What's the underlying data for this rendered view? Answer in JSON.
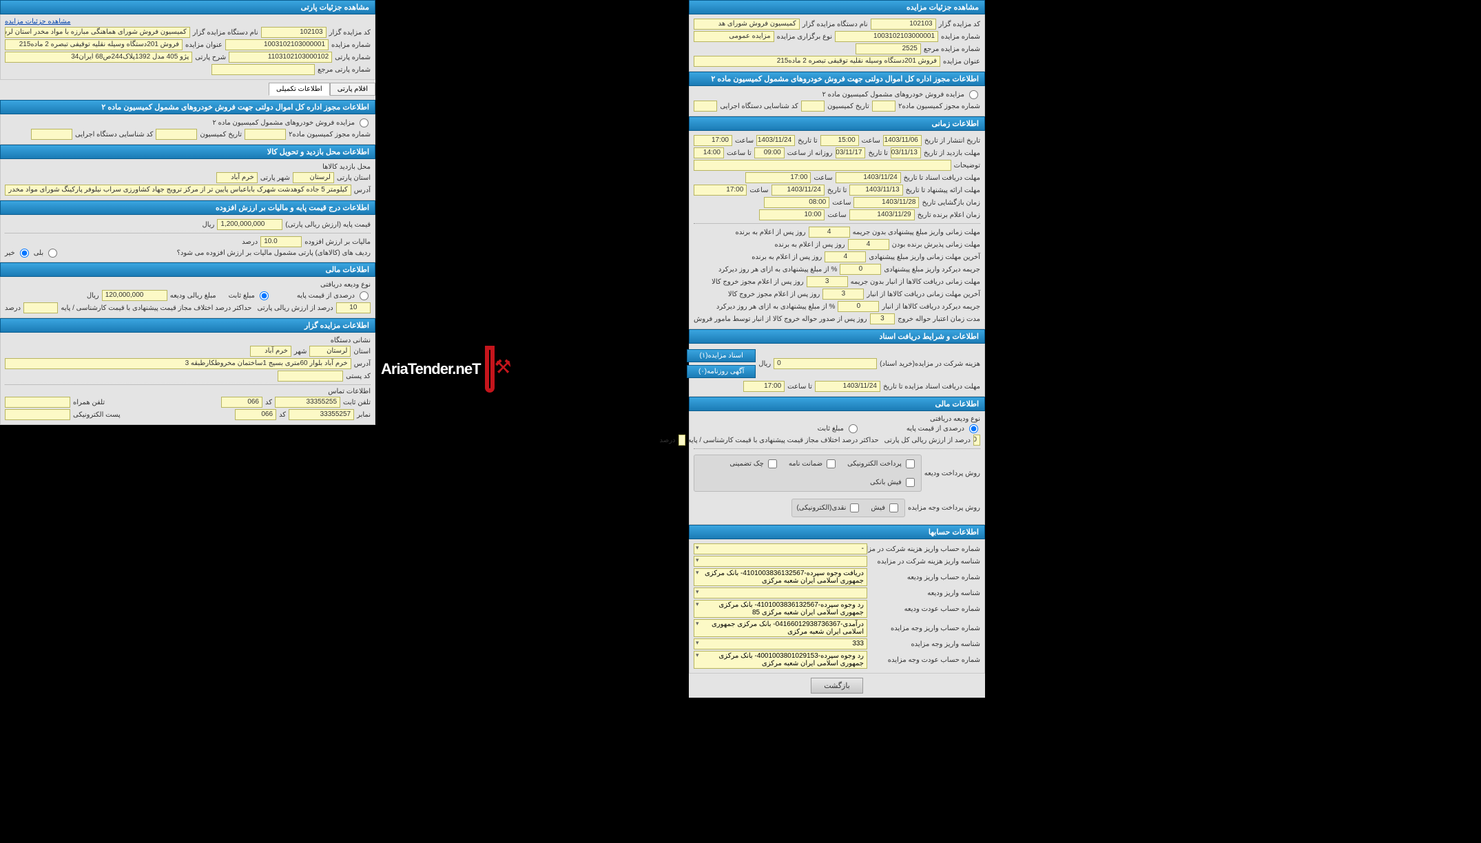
{
  "logo_text": "AriaTender.neT",
  "right": {
    "hdr1": "مشاهده جزئیات مزایده",
    "r1": [
      {
        "l": "کد مزایده گزار",
        "v": "102103"
      },
      {
        "l": "نام دستگاه مزایده گزار",
        "v": "کمیسیون فروش شورای هد"
      }
    ],
    "r2": [
      {
        "l": "شماره مزایده",
        "v": "1003102103000001"
      },
      {
        "l": "نوع برگزاری مزایده",
        "v": "مزایده عمومی"
      }
    ],
    "r3": [
      {
        "l": "شماره مزایده مرجع",
        "v": "2525"
      }
    ],
    "r4": [
      {
        "l": "عنوان مزایده",
        "v": "فروش 201دستگاه وسیله نقلیه توقیفی تبصره 2 ماده215"
      }
    ],
    "hdr2": "اطلاعات مجوز اداره کل اموال دولتی جهت فروش خودروهای مشمول کمیسیون ماده ۲",
    "rb1": "مزایده فروش خودروهای مشمول کمیسیون ماده ۲",
    "r5": [
      {
        "l": "شماره مجوز کمیسیون ماده۲",
        "v": ""
      },
      {
        "l": "تاریخ کمیسیون",
        "v": ""
      },
      {
        "l": "کد شناسایی دستگاه اجرایی",
        "v": ""
      }
    ],
    "hdr3": "اطلاعات زمانی",
    "time_rows": [
      [
        {
          "l": "تاریخ انتشار از تاریخ",
          "v": "1403/11/06"
        },
        {
          "l": "ساعت",
          "v": "15:00"
        },
        {
          "l": "تا تاریخ",
          "v": "1403/11/24"
        },
        {
          "l": "ساعت",
          "v": "17:00"
        }
      ],
      [
        {
          "l": "مهلت بازدید  از تاریخ",
          "v": "1403/11/13"
        },
        {
          "l": "تا تاریخ",
          "v": "1403/11/17"
        },
        {
          "l": "روزانه از ساعت",
          "v": "09:00"
        },
        {
          "l": "تا ساعت",
          "v": "14:00"
        }
      ]
    ],
    "tozihat_l": "توضیحات",
    "tozihat_v": "",
    "time_rows2": [
      [
        {
          "l": "مهلت دریافت اسناد  تا تاریخ",
          "v": "1403/11/24"
        },
        {
          "l": "ساعت",
          "v": "17:00"
        }
      ],
      [
        {
          "l": "مهلت ارائه پیشنهاد  تا تاریخ",
          "v": "1403/11/13"
        },
        {
          "l": "تا تاریخ",
          "v": "1403/11/24"
        },
        {
          "l": "ساعت",
          "v": "17:00"
        }
      ],
      [
        {
          "l": "زمان بازگشایی    تاریخ",
          "v": "1403/11/28"
        },
        {
          "l": "ساعت",
          "v": "08:00"
        }
      ],
      [
        {
          "l": "زمان اعلام برنده   تاریخ",
          "v": "1403/11/29"
        },
        {
          "l": "ساعت",
          "v": "10:00"
        }
      ]
    ],
    "num_rows": [
      {
        "l": "مهلت زمانی واریز مبلغ پیشنهادی بدون جریمه",
        "v": "4",
        "suf": "روز پس از اعلام به برنده"
      },
      {
        "l": "مهلت زمانی پذیرش برنده بودن",
        "v": "4",
        "suf": "روز پس از اعلام به برنده"
      },
      {
        "l": "آخرین مهلت زمانی واریز مبلغ پیشنهادی",
        "v": "4",
        "suf": "روز پس از اعلام به برنده"
      },
      {
        "l": "جریمه دیرکرد واریز مبلغ پیشنهادی",
        "v": "0",
        "suf": "% از مبلغ پیشنهادی به ازای هر روز دیرکرد"
      },
      {
        "l": "مهلت زمانی دریافت کالاها از انبار بدون جریمه",
        "v": "3",
        "suf": "روز پس از اعلام مجوز خروج کالا"
      },
      {
        "l": "آخرین مهلت زمانی دریافت کالاها از انبار",
        "v": "3",
        "suf": "روز پس از اعلام مجوز خروج کالا"
      },
      {
        "l": "جریمه دیرکرد دریافت کالاها از انبار",
        "v": "0",
        "suf": "% از مبلغ پیشنهادی به ازای هر روز دیرکرد"
      },
      {
        "l": "مدت زمان اعتبار حواله خروج",
        "v": "3",
        "suf": "روز پس از صدور حواله خروج کالا از انبار توسط مامور فروش"
      }
    ],
    "hdr4": "اطلاعات و شرایط دریافت اسناد",
    "doc_cost_l": "هزینه شرکت در مزایده(خرید اسناد)",
    "doc_cost_v": "0",
    "rial": "ریال",
    "btn1": "اسناد مزایده(۱)",
    "btn2": "آگهی روزنامه(۰)",
    "doc_deadline": [
      {
        "l": "مهلت دریافت اسناد مزایده تا تاریخ",
        "v": "1403/11/24"
      },
      {
        "l": "تا ساعت",
        "v": "17:00"
      }
    ],
    "hdr5": "اطلاعات مالی",
    "deposit_l": "نوع ودیعه دریافتی",
    "rb_pct": "درصدی از قیمت پایه",
    "rb_fix": "مبلغ ثابت",
    "pct_row": [
      {
        "v": "10",
        "suf": "درصد از ارزش ریالی کل پارتی"
      }
    ],
    "max_diff_l": "حداکثر درصد اختلاف مجاز قیمت پیشنهادی با قیمت کارشناسی / پایه",
    "max_diff_v": "",
    "max_diff_suf": "درصد",
    "pay1_l": "روش پرداخت ودیعه",
    "pay1_opts": [
      "پرداخت الکترونیکی",
      "ضمانت نامه",
      "چک تضمینی",
      "فیش بانکی"
    ],
    "pay2_l": "روش پرداخت وجه مزایده",
    "pay2_opts": [
      "فیش",
      "نقدی(الکترونیکی)"
    ],
    "hdr6": "اطلاعات حسابها",
    "accts": [
      {
        "l": "شماره حساب واریز هزینه شرکت در مزایده",
        "v": "-"
      },
      {
        "l": "شناسه واریز هزینه شرکت در مزایده",
        "v": ""
      },
      {
        "l": "شماره حساب واریز ودیعه",
        "v": "دریافت وجوه سپرده-4101003836132567- بانک مرکزی جمهوری اسلامی ایران شعبه مرکزی"
      },
      {
        "l": "شناسه واریز ودیعه",
        "v": ""
      },
      {
        "l": "شماره حساب عودت ودیعه",
        "v": "رد وجوه سپرده-4101003836132567- بانک مرکزی جمهوری اسلامی ایران شعبه مرکزی 85"
      },
      {
        "l": "شماره حساب واریز وجه مزایده",
        "v": "درآمدی-04166012938736367- بانک مرکزی جمهوری اسلامی ایران شعبه مرکزی"
      },
      {
        "l": "شناسه واریز وجه مزایده",
        "v": "333"
      },
      {
        "l": "شماره حساب عودت وجه مزایده",
        "v": "رد وجوه سپرده-4001003801029153- بانک مرکزی جمهوری اسلامی ایران شعبه مرکزی"
      }
    ],
    "back_btn": "بازگشت"
  },
  "left": {
    "hdr1": "مشاهده جزئیات پارتی",
    "link1": "مشاهده جزئیات مزایده",
    "r1": [
      {
        "l": "کد مزایده گزار",
        "v": "102103"
      },
      {
        "l": "نام دستگاه مزایده گزار",
        "v": "کمیسیون فروش شورای هماهنگی مبارزه با مواد مخدر استان لرستان"
      }
    ],
    "r2": [
      {
        "l": "شماره مزایده",
        "v": "1003102103000001"
      },
      {
        "l": "عنوان مزایده",
        "v": "فروش 201دستگاه وسیله نقلیه توقیفی تبصره 2 ماده215"
      }
    ],
    "r3": [
      {
        "l": "شماره پارتی",
        "v": "1103102103000102"
      },
      {
        "l": "شرح پارتی",
        "v": "پژو 405 مدل 1392پلاک244ص68 ایران34"
      }
    ],
    "r4_l": "شماره پارتی مرجع",
    "r4_v": "",
    "tab1": "اقلام پارتی",
    "tab2": "اطلاعات تکمیلی",
    "hdr2": "اطلاعات مجوز اداره کل اموال دولتی جهت فروش خودروهای مشمول کمیسیون ماده ۲",
    "rb1": "مزایده فروش خودروهای مشمول کمیسیون ماده ۲",
    "r5": [
      {
        "l": "شماره مجوز کمیسیون ماده۲",
        "v": ""
      },
      {
        "l": "تاریخ کمیسیون",
        "v": ""
      },
      {
        "l": "کد شناسایی دستگاه اجرایی",
        "v": ""
      }
    ],
    "hdr3": "اطلاعات محل بازدید و تحویل کالا",
    "loc_l": "محل بازدید کالاها",
    "loc_row": [
      {
        "l": "استان پارتی",
        "v": "لرستان"
      },
      {
        "l": "شهر پارتی",
        "v": "خرم آباد"
      }
    ],
    "addr_l": "آدرس",
    "addr_v": "کیلومتر 5 جاده کوهدشت شهرک باباعباس پایین تر از مرکز ترویج جهاد کشاورزی سراب نیلوفر پارکینگ شورای مواد مخدر",
    "hdr4": "اطلاعات درج قیمت پایه و مالیات بر ارزش افزوده",
    "base_l": "قیمت پایه (ارزش ریالی پارتی)",
    "base_v": "1,200,000,000",
    "rial": "ریال",
    "vat_l": "مالیات بر ارزش افزوده",
    "vat_v": "10.0",
    "vat_suf": "درصد",
    "vat_q": "ردیف های (کالاهای) پارتی مشمول مالیات بر ارزش افزوده می شود؟",
    "rb_yes": "بلی",
    "rb_no": "خیر",
    "hdr5": "اطلاعات مالی",
    "dep_l": "نوع ودیعه دریافتی",
    "rb_pct": "درصدی از قیمت پایه",
    "rb_fix": "مبلغ ثابت",
    "dep_amt_l": "مبلغ ریالی ودیعه",
    "dep_amt_v": "120,000,000",
    "pct_row": [
      {
        "v": "10",
        "suf": "درصد از ارزش ریالی پارتی"
      }
    ],
    "max_l": "حداکثر درصد اختلاف مجاز قیمت پیشنهادی با قیمت کارشناسی / پایه",
    "max_v": "",
    "max_suf": "درصد",
    "hdr6": "اطلاعات مزایده گزار",
    "org_l": "نشانی دستگاه",
    "org_row": [
      {
        "l": "استان",
        "v": "لرستان"
      },
      {
        "l": "شهر",
        "v": "خرم آباد"
      }
    ],
    "org_addr_l": "آدرس",
    "org_addr_v": "خرم آباد بلوار 60متری بسیج 1ساختمان مخروطکارطبقه 3",
    "post_l": "کد پستی",
    "post_v": "",
    "contact_l": "اطلاعات تماس",
    "tel_l": "تلفن ثابت",
    "tel_v": "33355255",
    "tel_code_l": "کد",
    "tel_code_v": "066",
    "mob_l": "تلفن همراه",
    "mob_v": "",
    "fax_l": "نمابر",
    "fax_v": "33355257",
    "fax_code_v": "066",
    "email_l": "پست الکترونیکی",
    "email_v": ""
  }
}
